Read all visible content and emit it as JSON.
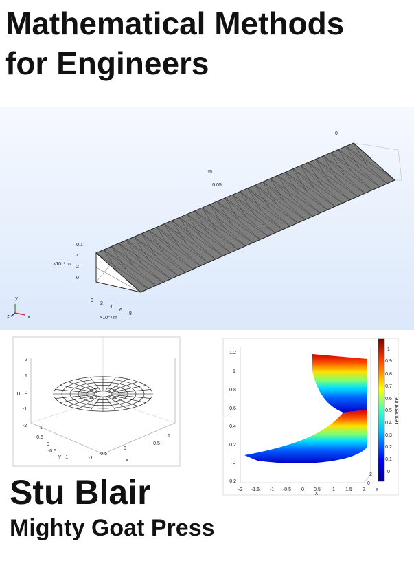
{
  "cover": {
    "title_lines": [
      "Mathematical Methods",
      "for Engineers"
    ],
    "author": "Stu Blair",
    "publisher": "Mighty Goat Press",
    "mesh_figure": {
      "labels": [
        "0",
        "m",
        "0.05",
        "0.1",
        "×10⁻³ m",
        "4",
        "2",
        "0",
        "0",
        "2",
        "4",
        "6",
        "8",
        "×10⁻³ m",
        "y",
        "z",
        "x"
      ]
    },
    "surface_figure": {
      "labels": [
        "2",
        "1",
        "0",
        "-1",
        "-2",
        "U",
        "1",
        "0.5",
        "0",
        "-0.5",
        "-1",
        "Y",
        "-1",
        "-0.5",
        "0",
        "0.5",
        "1",
        "X"
      ]
    },
    "temperature_figure": {
      "labels": [
        "1.2",
        "1",
        "0.8",
        "0.6",
        "0.4",
        "0.2",
        "0",
        "-0.2",
        "U",
        "-2",
        "-1.5",
        "-1",
        "-0.5",
        "0",
        "0.5",
        "1",
        "1.5",
        "2",
        "X",
        "2",
        "0",
        "Y",
        "1",
        "0.9",
        "0.8",
        "0.7",
        "0.6",
        "0.5",
        "0.4",
        "0.3",
        "0.2",
        "0.1",
        "0",
        "Temperature"
      ]
    }
  }
}
